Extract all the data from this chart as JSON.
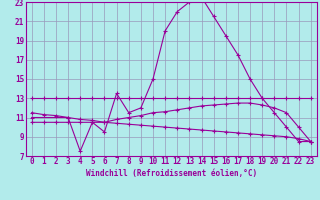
{
  "line1_x": [
    0,
    1,
    2,
    3,
    4,
    5,
    6,
    7,
    8,
    9,
    10,
    11,
    12,
    13,
    14,
    15,
    16,
    17,
    18,
    19,
    20,
    21,
    22,
    23
  ],
  "line1_y": [
    13,
    13,
    13,
    13,
    13,
    13,
    13,
    13,
    13,
    13,
    13,
    13,
    13,
    13,
    13,
    13,
    13,
    13,
    13,
    13,
    13,
    13,
    13,
    13
  ],
  "line2_x": [
    0,
    3,
    4,
    5,
    6,
    7,
    8,
    9,
    10,
    11,
    12,
    13,
    14,
    15,
    16,
    17,
    18,
    19,
    20,
    21,
    22,
    23
  ],
  "line2_y": [
    11,
    11,
    7.5,
    10.5,
    9.5,
    13.5,
    11.5,
    12,
    15,
    20,
    22,
    23,
    23.5,
    21.5,
    19.5,
    17.5,
    15,
    13,
    11.5,
    10,
    8.5,
    8.5
  ],
  "line3_x": [
    0,
    1,
    2,
    3,
    4,
    5,
    6,
    7,
    8,
    9,
    10,
    11,
    12,
    13,
    14,
    15,
    16,
    17,
    18,
    19,
    20,
    21,
    22,
    23
  ],
  "line3_y": [
    10.5,
    10.5,
    10.5,
    10.5,
    10.5,
    10.5,
    10.5,
    10.8,
    11.0,
    11.2,
    11.5,
    11.6,
    11.8,
    12.0,
    12.2,
    12.3,
    12.4,
    12.5,
    12.5,
    12.3,
    12.0,
    11.5,
    10.0,
    8.5
  ],
  "line4_x": [
    0,
    1,
    2,
    3,
    4,
    5,
    6,
    7,
    8,
    9,
    10,
    11,
    12,
    13,
    14,
    15,
    16,
    17,
    18,
    19,
    20,
    21,
    22,
    23
  ],
  "line4_y": [
    11.5,
    11.3,
    11.2,
    11.0,
    10.8,
    10.7,
    10.5,
    10.4,
    10.3,
    10.2,
    10.1,
    10.0,
    9.9,
    9.8,
    9.7,
    9.6,
    9.5,
    9.4,
    9.3,
    9.2,
    9.1,
    9.0,
    8.8,
    8.5
  ],
  "bg_color": "#b2ebeb",
  "grid_color": "#9999bb",
  "line_color": "#990099",
  "xlabel": "Windchill (Refroidissement éolien,°C)",
  "xlim": [
    -0.5,
    23.5
  ],
  "ylim": [
    7,
    23
  ],
  "yticks": [
    7,
    9,
    11,
    13,
    15,
    17,
    19,
    21,
    23
  ],
  "xticks": [
    0,
    1,
    2,
    3,
    4,
    5,
    6,
    7,
    8,
    9,
    10,
    11,
    12,
    13,
    14,
    15,
    16,
    17,
    18,
    19,
    20,
    21,
    22,
    23
  ]
}
